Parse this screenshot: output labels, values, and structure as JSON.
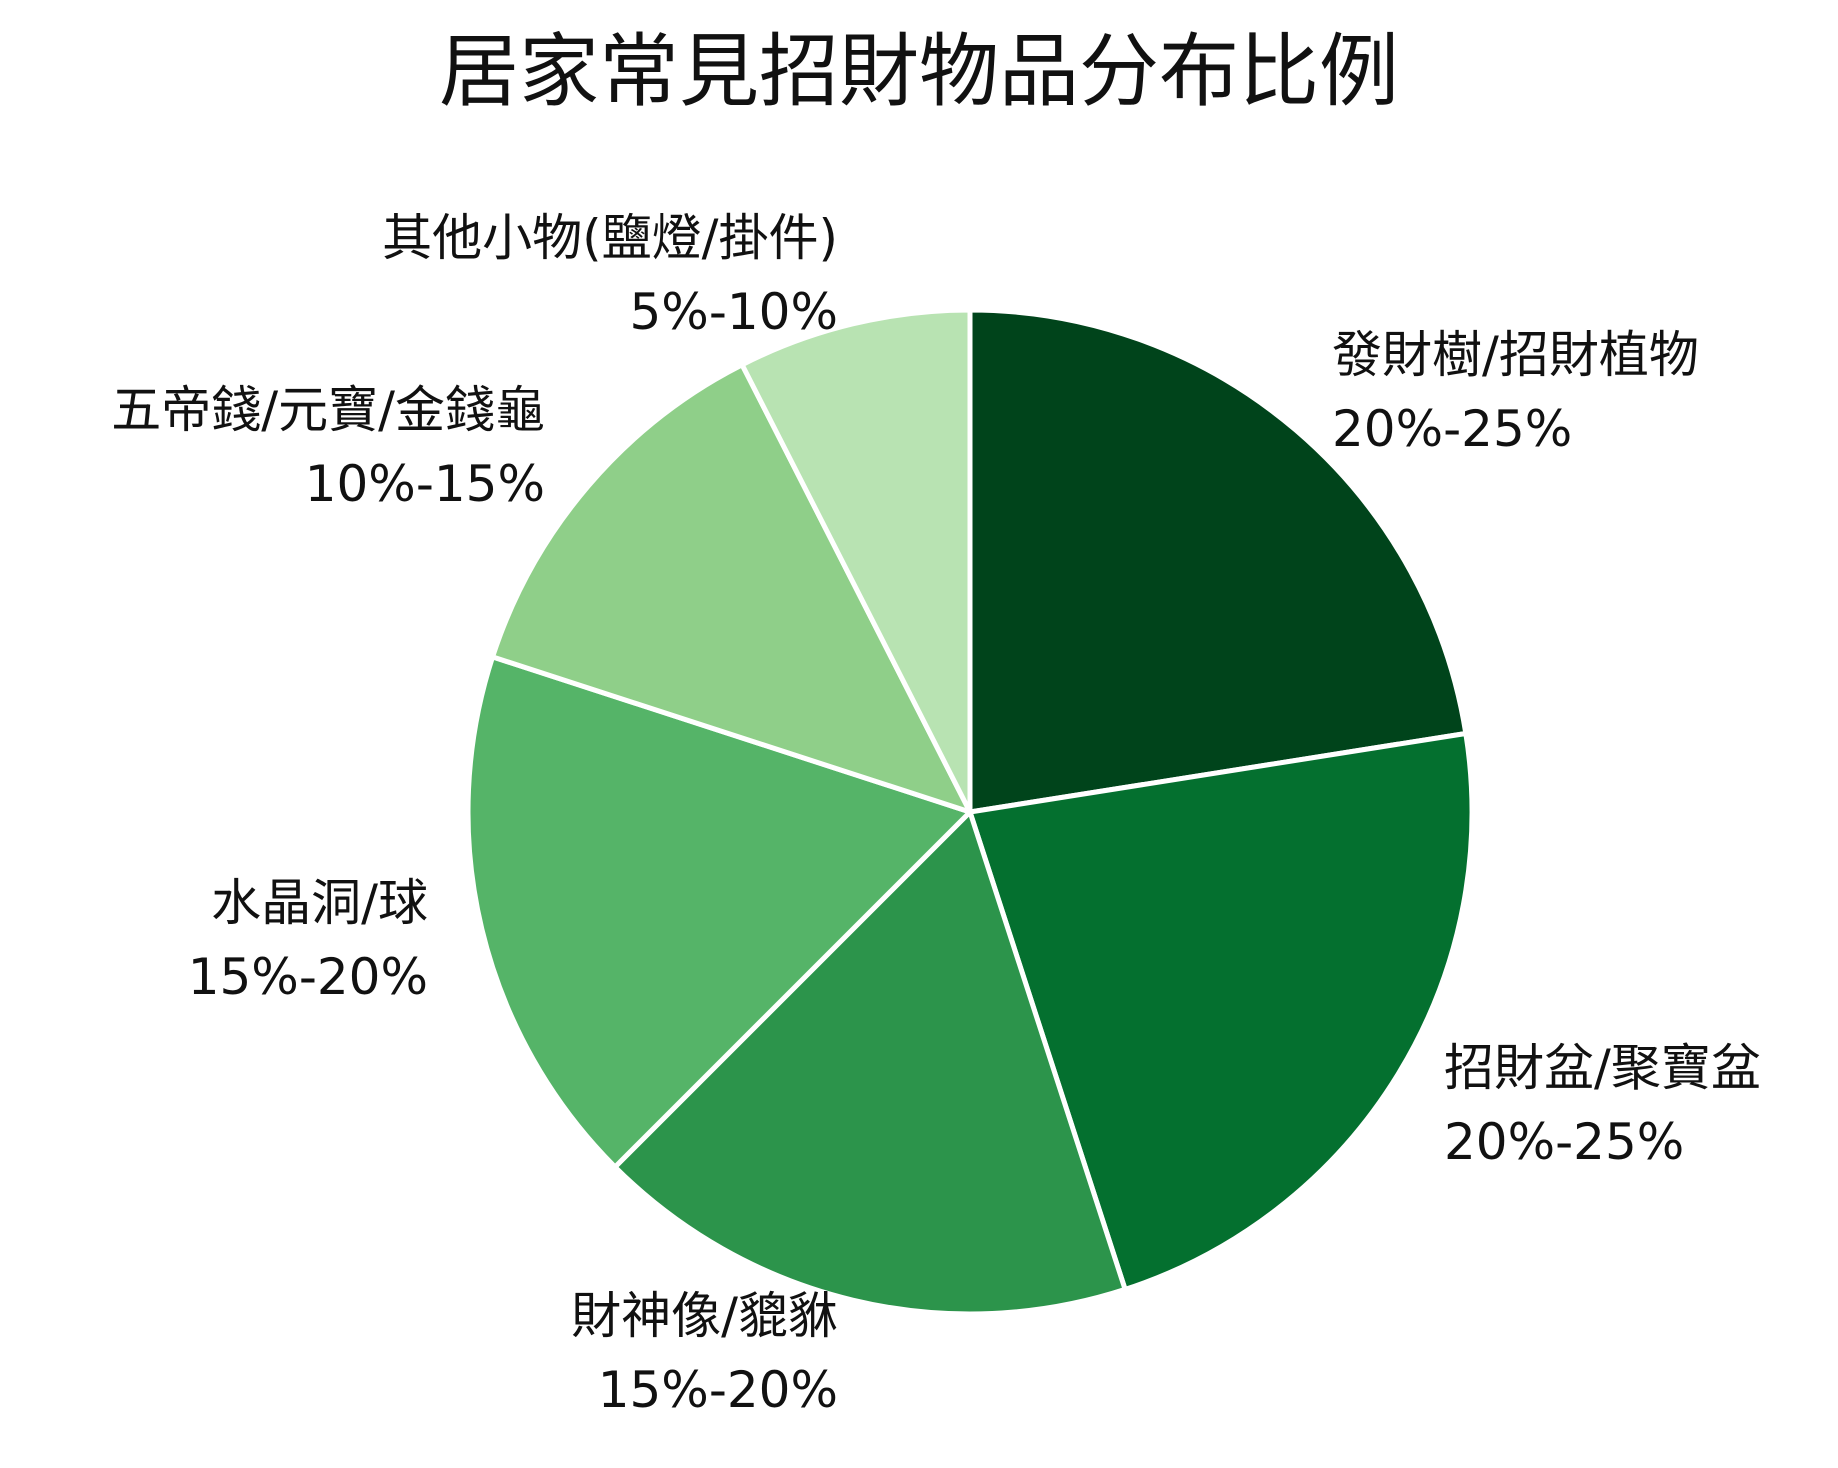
{
  "chart_data": {
    "type": "pie",
    "title": "居家常見招財物品分布比例",
    "start_angle_deg": 0,
    "direction": "clockwise",
    "slices": [
      {
        "name": "發財樹/招財植物",
        "range_label": "20%-25%",
        "value": 22.5,
        "color": "#00441b"
      },
      {
        "name": "招財盆/聚寶盆",
        "range_label": "20%-25%",
        "value": 22.5,
        "color": "#04702f"
      },
      {
        "name": "財神像/貔貅",
        "range_label": "15%-20%",
        "value": 17.5,
        "color": "#2c944b"
      },
      {
        "name": "水晶洞/球",
        "range_label": "15%-20%",
        "value": 17.5,
        "color": "#55b468"
      },
      {
        "name": "五帝錢/元寶/金錢龜",
        "range_label": "10%-15%",
        "value": 12.5,
        "color": "#8fcf89"
      },
      {
        "name": "其他小物(鹽燈/掛件)",
        "range_label": "5%-10%",
        "value": 7.5,
        "color": "#b8e3b2"
      }
    ],
    "slice_border_color": "#ffffff",
    "legend": "none",
    "grid": false
  }
}
